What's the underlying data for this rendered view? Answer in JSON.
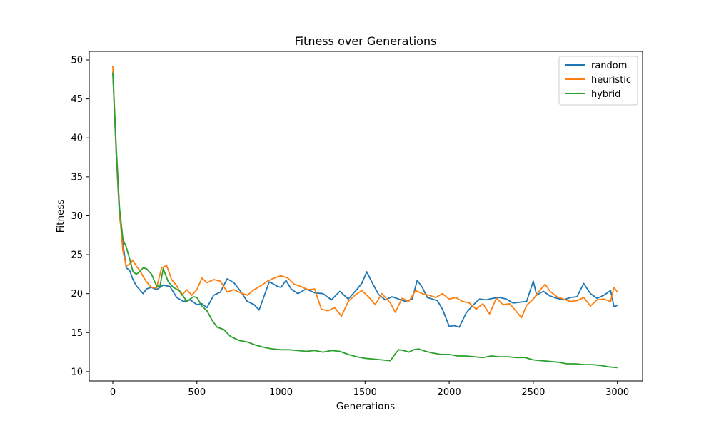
{
  "chart_data": {
    "type": "line",
    "title": "Fitness over Generations",
    "xlabel": "Generations",
    "ylabel": "Fitness",
    "xlim": [
      -140,
      3150
    ],
    "ylim": [
      8.8,
      51.1
    ],
    "xticks": [
      0,
      500,
      1000,
      1500,
      2000,
      2500,
      3000
    ],
    "yticks": [
      10,
      15,
      20,
      25,
      30,
      35,
      40,
      45,
      50
    ],
    "grid": false,
    "legend": "top-right",
    "series": [
      {
        "name": "random",
        "color": "#1f77b4",
        "x": [
          0,
          20,
          40,
          60,
          80,
          100,
          120,
          140,
          160,
          180,
          200,
          230,
          260,
          300,
          340,
          380,
          420,
          460,
          500,
          530,
          560,
          600,
          640,
          680,
          720,
          760,
          800,
          840,
          870,
          900,
          930,
          950,
          980,
          1000,
          1030,
          1060,
          1100,
          1150,
          1200,
          1250,
          1300,
          1350,
          1400,
          1450,
          1480,
          1510,
          1540,
          1580,
          1620,
          1660,
          1700,
          1740,
          1780,
          1810,
          1840,
          1870,
          1900,
          1930,
          1960,
          2000,
          2030,
          2060,
          2100,
          2140,
          2180,
          2220,
          2260,
          2300,
          2340,
          2380,
          2420,
          2460,
          2500,
          2520,
          2560,
          2600,
          2640,
          2680,
          2720,
          2760,
          2800,
          2840,
          2880,
          2920,
          2960,
          2980,
          3000
        ],
        "y": [
          48.5,
          38.0,
          30.0,
          26.5,
          23.3,
          23.0,
          21.8,
          21.0,
          20.5,
          20.0,
          20.6,
          20.8,
          20.5,
          21.1,
          20.9,
          19.5,
          19.0,
          19.2,
          18.6,
          18.7,
          18.2,
          19.8,
          20.2,
          21.9,
          21.4,
          20.3,
          19.0,
          18.6,
          17.9,
          19.7,
          21.5,
          21.3,
          20.9,
          20.8,
          21.7,
          20.6,
          20.0,
          20.6,
          20.1,
          20.0,
          19.2,
          20.3,
          19.3,
          20.5,
          21.3,
          22.8,
          21.5,
          19.9,
          19.2,
          19.6,
          19.3,
          19.0,
          19.3,
          21.7,
          20.8,
          19.5,
          19.3,
          19.1,
          18.0,
          15.8,
          15.9,
          15.7,
          17.5,
          18.5,
          19.3,
          19.2,
          19.4,
          19.5,
          19.3,
          18.8,
          18.9,
          19.0,
          21.6,
          19.8,
          20.3,
          19.7,
          19.4,
          19.2,
          19.5,
          19.6,
          21.3,
          20.0,
          19.4,
          19.8,
          20.4,
          18.3,
          18.5
        ]
      },
      {
        "name": "heuristic",
        "color": "#ff7f0e",
        "x": [
          0,
          20,
          40,
          60,
          80,
          100,
          120,
          140,
          160,
          180,
          200,
          230,
          260,
          290,
          320,
          350,
          380,
          410,
          440,
          470,
          500,
          530,
          560,
          600,
          640,
          680,
          720,
          760,
          800,
          840,
          880,
          920,
          960,
          1000,
          1040,
          1080,
          1120,
          1160,
          1200,
          1240,
          1280,
          1320,
          1360,
          1400,
          1440,
          1480,
          1520,
          1560,
          1600,
          1650,
          1680,
          1720,
          1760,
          1800,
          1840,
          1880,
          1920,
          1960,
          2000,
          2040,
          2080,
          2120,
          2160,
          2200,
          2240,
          2280,
          2320,
          2360,
          2400,
          2430,
          2460,
          2500,
          2530,
          2570,
          2600,
          2640,
          2680,
          2720,
          2760,
          2800,
          2840,
          2880,
          2920,
          2960,
          2980,
          3000
        ],
        "y": [
          49.2,
          38.5,
          30.5,
          25.5,
          23.5,
          23.8,
          24.3,
          23.5,
          23.0,
          22.2,
          21.5,
          20.8,
          20.7,
          23.3,
          23.6,
          21.8,
          21.0,
          19.8,
          20.5,
          19.8,
          20.5,
          22.0,
          21.4,
          21.8,
          21.6,
          20.2,
          20.5,
          20.1,
          19.8,
          20.5,
          21.0,
          21.6,
          22.0,
          22.3,
          22.0,
          21.2,
          20.9,
          20.5,
          20.6,
          18.0,
          17.8,
          18.2,
          17.1,
          19.0,
          19.8,
          20.4,
          19.6,
          18.6,
          20.0,
          18.8,
          17.6,
          19.4,
          19.0,
          20.4,
          20.0,
          19.8,
          19.5,
          20.0,
          19.3,
          19.5,
          19.0,
          18.8,
          18.0,
          18.7,
          17.4,
          19.4,
          18.6,
          18.7,
          17.7,
          16.9,
          18.5,
          19.3,
          20.2,
          21.2,
          20.3,
          19.6,
          19.3,
          19.0,
          19.1,
          19.5,
          18.4,
          19.2,
          19.3,
          19.0,
          20.8,
          20.2
        ]
      },
      {
        "name": "hybrid",
        "color": "#2ca02c",
        "x": [
          0,
          20,
          40,
          60,
          80,
          100,
          120,
          140,
          160,
          180,
          200,
          230,
          260,
          280,
          300,
          330,
          360,
          400,
          440,
          480,
          500,
          530,
          560,
          590,
          620,
          660,
          700,
          750,
          800,
          850,
          900,
          950,
          1000,
          1050,
          1100,
          1150,
          1200,
          1250,
          1300,
          1350,
          1400,
          1450,
          1500,
          1550,
          1600,
          1650,
          1680,
          1700,
          1730,
          1760,
          1790,
          1820,
          1860,
          1900,
          1950,
          2000,
          2050,
          2100,
          2150,
          2200,
          2250,
          2300,
          2350,
          2400,
          2450,
          2500,
          2550,
          2600,
          2650,
          2700,
          2750,
          2800,
          2850,
          2900,
          2950,
          3000
        ],
        "y": [
          48.3,
          39.0,
          31.0,
          27.0,
          26.0,
          24.5,
          22.8,
          22.5,
          22.8,
          23.3,
          23.2,
          22.5,
          21.0,
          20.9,
          23.2,
          21.5,
          20.8,
          20.3,
          19.0,
          19.6,
          19.5,
          18.4,
          17.8,
          16.6,
          15.7,
          15.4,
          14.5,
          14.0,
          13.8,
          13.4,
          13.1,
          12.9,
          12.8,
          12.8,
          12.7,
          12.6,
          12.7,
          12.5,
          12.7,
          12.6,
          12.2,
          11.9,
          11.7,
          11.6,
          11.5,
          11.4,
          12.3,
          12.8,
          12.7,
          12.5,
          12.8,
          12.9,
          12.6,
          12.4,
          12.2,
          12.2,
          12.0,
          12.0,
          11.9,
          11.8,
          12.0,
          11.9,
          11.9,
          11.8,
          11.8,
          11.5,
          11.4,
          11.3,
          11.2,
          11.0,
          11.0,
          10.9,
          10.9,
          10.8,
          10.6,
          10.5
        ]
      }
    ]
  }
}
